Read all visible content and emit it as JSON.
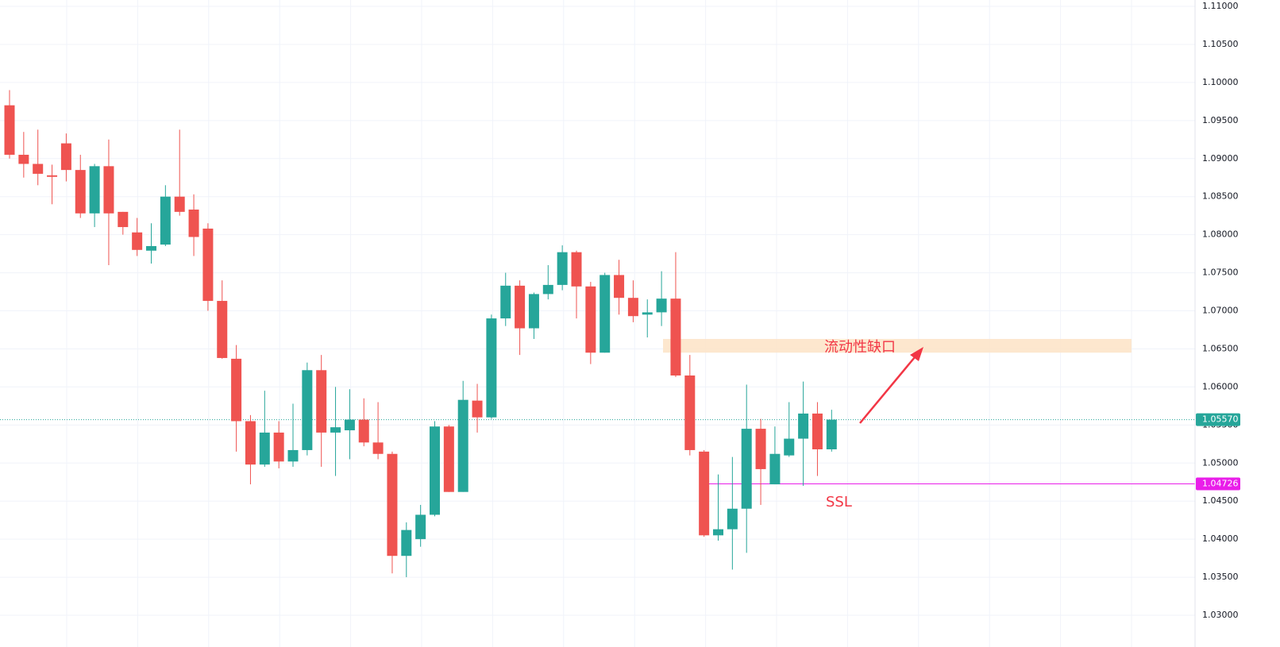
{
  "chart_data": {
    "type": "candlestick",
    "open": [
      1.097,
      1.0905,
      1.0893,
      1.0878,
      1.092,
      1.0885,
      1.0828,
      1.089,
      1.083,
      1.0803,
      1.0779,
      1.0787,
      1.085,
      1.0833,
      1.0808,
      1.0713,
      1.0637,
      1.0555,
      1.0498,
      1.054,
      1.0502,
      1.0517,
      1.0622,
      1.054,
      1.0543,
      1.0557,
      1.0527,
      1.0512,
      1.0378,
      1.04,
      1.0432,
      1.0548,
      1.0462,
      1.0582,
      1.056,
      1.069,
      1.0733,
      1.0677,
      1.0722,
      1.0734,
      1.0777,
      1.0732,
      1.0645,
      1.0747,
      1.0717,
      1.0695,
      1.0698,
      1.0716,
      1.0615,
      1.0515,
      1.0405,
      1.0413,
      1.044,
      1.0545,
      1.0472,
      1.051,
      1.0532,
      1.0565,
      1.0518
    ],
    "high": [
      1.099,
      1.0935,
      1.0938,
      1.0892,
      1.0933,
      1.0905,
      1.0893,
      1.0925,
      1.083,
      1.0822,
      1.0815,
      1.0865,
      1.0938,
      1.0853,
      1.0815,
      1.074,
      1.0655,
      1.0563,
      1.0595,
      1.0555,
      1.0578,
      1.0632,
      1.0642,
      1.06,
      1.0597,
      1.0585,
      1.058,
      1.0515,
      1.0422,
      1.0445,
      1.0555,
      1.055,
      1.0608,
      1.0604,
      1.0695,
      1.075,
      1.074,
      1.0724,
      1.076,
      1.0786,
      1.0779,
      1.0738,
      1.075,
      1.0767,
      1.074,
      1.0715,
      1.0752,
      1.0777,
      1.0642,
      1.0517,
      1.0485,
      1.0508,
      1.0603,
      1.0558,
      1.0548,
      1.058,
      1.0607,
      1.058,
      1.057
    ],
    "low": [
      1.09,
      1.0875,
      1.0865,
      1.084,
      1.087,
      1.0822,
      1.081,
      1.076,
      1.08,
      1.0772,
      1.0762,
      1.0785,
      1.0825,
      1.0772,
      1.07,
      1.0637,
      1.0515,
      1.0472,
      1.0495,
      1.0493,
      1.0495,
      1.051,
      1.0495,
      1.0483,
      1.0505,
      1.0522,
      1.0505,
      1.0355,
      1.035,
      1.039,
      1.043,
      1.0462,
      1.0462,
      1.054,
      1.0558,
      1.068,
      1.0642,
      1.0663,
      1.0715,
      1.0727,
      1.069,
      1.063,
      1.0645,
      1.0695,
      1.0685,
      1.0665,
      1.068,
      1.0613,
      1.051,
      1.0403,
      1.0398,
      1.036,
      1.0382,
      1.0445,
      1.0472,
      1.0508,
      1.047,
      1.0483,
      1.0515
    ],
    "close": [
      1.0905,
      1.0893,
      1.088,
      1.0876,
      1.0885,
      1.0828,
      1.089,
      1.0828,
      1.081,
      1.078,
      1.0785,
      1.085,
      1.083,
      1.0797,
      1.0713,
      1.0638,
      1.0555,
      1.0498,
      1.054,
      1.0502,
      1.0517,
      1.0622,
      1.054,
      1.0547,
      1.0557,
      1.0527,
      1.0512,
      1.0378,
      1.0412,
      1.0432,
      1.0548,
      1.0462,
      1.0583,
      1.056,
      1.069,
      1.0733,
      1.0677,
      1.0722,
      1.0734,
      1.0777,
      1.0732,
      1.0645,
      1.0747,
      1.0717,
      1.0693,
      1.0698,
      1.0716,
      1.0615,
      1.0517,
      1.0405,
      1.0413,
      1.044,
      1.0545,
      1.0492,
      1.0512,
      1.0532,
      1.0565,
      1.0518,
      1.0557
    ],
    "up_color": "#26a69a",
    "down_color": "#ef5350",
    "ylim": [
      1.03,
      1.11
    ],
    "yticks": [
      {
        "value": 1.11,
        "label": "1.11000"
      },
      {
        "value": 1.105,
        "label": "1.10500"
      },
      {
        "value": 1.1,
        "label": "1.10000"
      },
      {
        "value": 1.095,
        "label": "1.09500"
      },
      {
        "value": 1.09,
        "label": "1.09000"
      },
      {
        "value": 1.085,
        "label": "1.08500"
      },
      {
        "value": 1.08,
        "label": "1.08000"
      },
      {
        "value": 1.075,
        "label": "1.07500"
      },
      {
        "value": 1.07,
        "label": "1.07000"
      },
      {
        "value": 1.065,
        "label": "1.06500"
      },
      {
        "value": 1.06,
        "label": "1.06000"
      },
      {
        "value": 1.055,
        "label": "1.05500"
      },
      {
        "value": 1.05,
        "label": "1.05000"
      },
      {
        "value": 1.045,
        "label": "1.04500"
      },
      {
        "value": 1.04,
        "label": "1.04000"
      },
      {
        "value": 1.035,
        "label": "1.03500"
      },
      {
        "value": 1.03,
        "label": "1.03000"
      }
    ],
    "grid": true,
    "current_price": {
      "value": 1.0557,
      "label": "1.05570",
      "color": "#26a69a"
    },
    "ssl_line": {
      "value": 1.04726,
      "label": "1.04726",
      "color": "#e91ee9"
    },
    "zone": {
      "top": 1.0663,
      "bottom": 1.0645,
      "color": "#fde3c6"
    },
    "annotations": {
      "gap": "流动性缺口",
      "ssl": "SSL"
    }
  }
}
